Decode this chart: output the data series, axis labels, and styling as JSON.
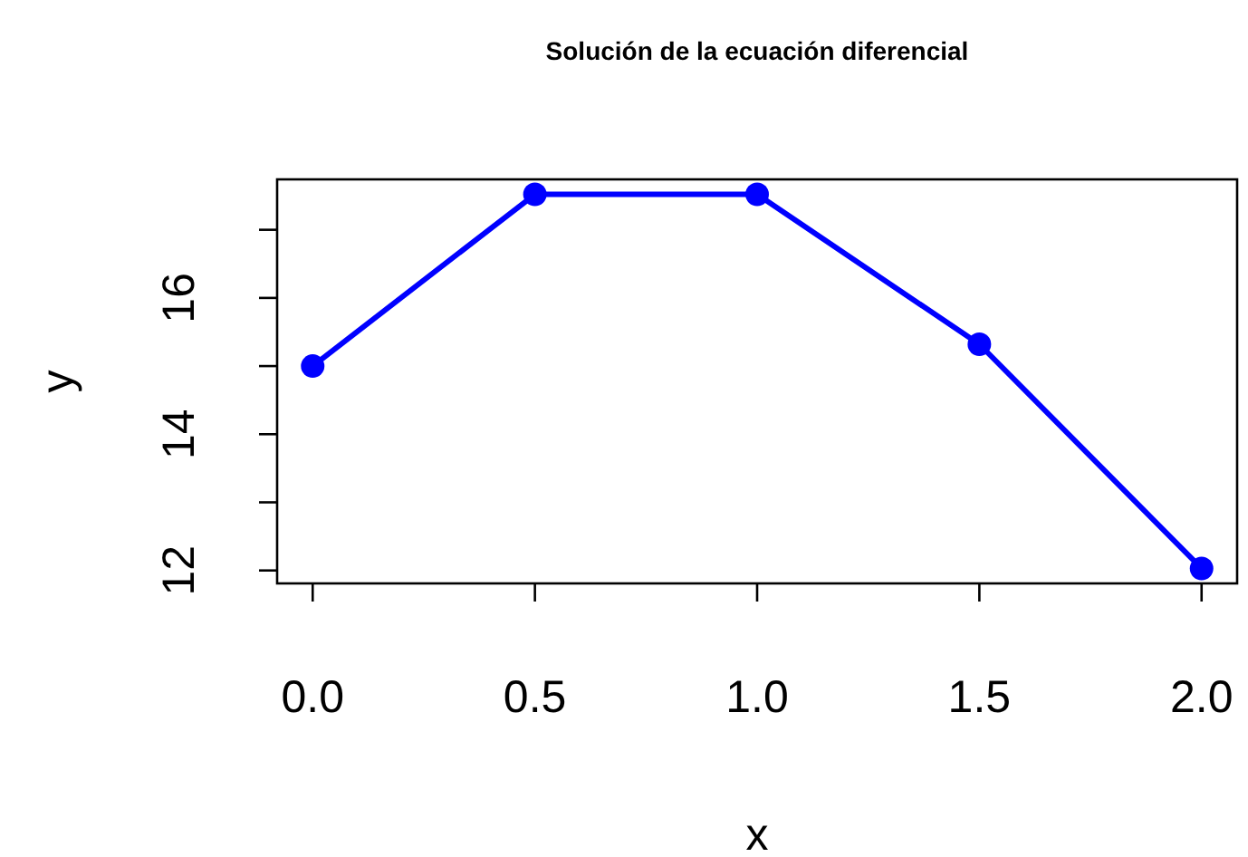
{
  "chart_data": {
    "type": "line",
    "title": "Solución de la ecuación diferencial",
    "xlabel": "x",
    "ylabel": "y",
    "x": [
      0,
      0.5,
      1,
      1.5,
      2
    ],
    "series": [
      {
        "color": "#0000ff",
        "values": [
          15.0,
          17.52,
          17.52,
          15.32,
          12.03
        ]
      }
    ],
    "xlim": [
      -0.08,
      2.08
    ],
    "xticks": [
      {
        "value": 0,
        "label": "0.0"
      },
      {
        "value": 0.5,
        "label": "0.5"
      },
      {
        "value": 1,
        "label": "1.0"
      },
      {
        "value": 1.5,
        "label": "1.5"
      },
      {
        "value": 2,
        "label": "2.0"
      }
    ],
    "ylim": [
      11.81,
      17.74
    ],
    "yticks": [
      12,
      {
        "value": 13,
        "label": null
      },
      14,
      {
        "value": 15,
        "label": null
      },
      16,
      {
        "value": 17,
        "label": null
      }
    ],
    "marker": "circle",
    "line_style": "solid",
    "grid": false
  }
}
